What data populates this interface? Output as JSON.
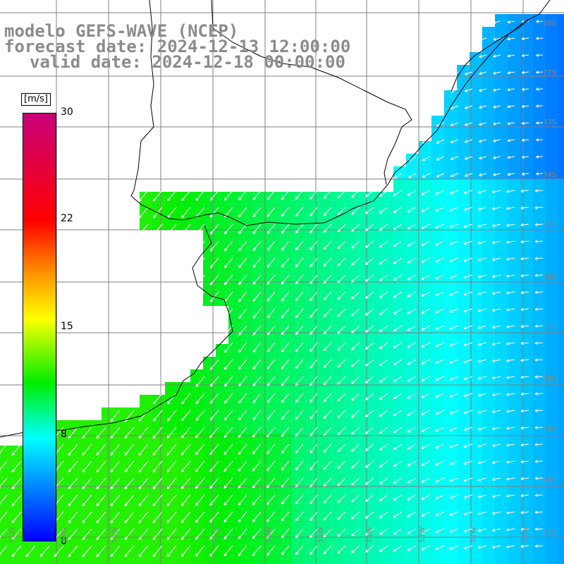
{
  "title": {
    "line1": "modelo GEFS-WAVE (NCEP)",
    "line2": "forecast date: 2024-12-13 12:00:00",
    "line3": "valid date: 2024-12-18 00:00:00"
  },
  "colorbar": {
    "units": "[m/s]",
    "ticks": [
      "30",
      "22",
      "15",
      "8",
      "0"
    ],
    "tick_values": [
      30,
      22,
      15,
      8,
      0
    ]
  },
  "lat_labels": [
    "26S",
    "27S",
    "33S",
    "34S",
    "35S",
    "36S",
    "37S",
    "38S",
    "39S",
    "40S",
    "41S"
  ],
  "lon_labels": [
    "61W",
    "60W",
    "59W",
    "57W",
    "56W",
    "55W",
    "54W",
    "53W",
    "52W",
    "51W"
  ],
  "colors": {
    "land": "#ffffff",
    "grid": "#808080",
    "coast": "#000000",
    "arrow": "#ffffff"
  }
}
